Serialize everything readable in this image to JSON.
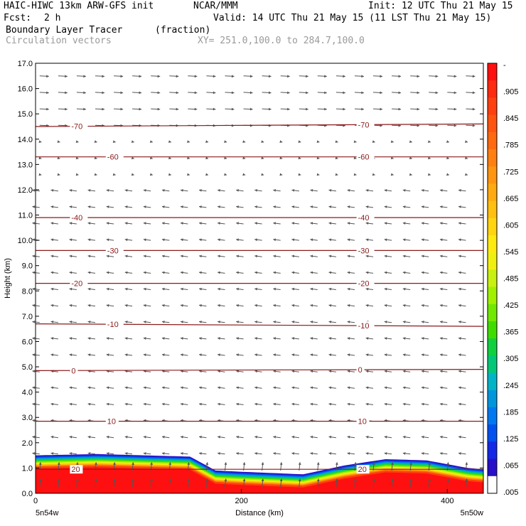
{
  "header": {
    "title": "HAIC-HIWC 13km ARW-GFS init",
    "agency": "NCAR/MMM",
    "init": "Init: 12 UTC Thu 21 May 15",
    "fcst_label": "Fcst:",
    "fcst_value": "2 h",
    "valid": "Valid: 14 UTC Thu 21 May 15 (11 LST Thu 21 May 15)",
    "field_name": "Boundary Layer Tracer",
    "field_units": "(fraction)",
    "vector_name": "Circulation vectors",
    "xy_range": "XY= 251.0,100.0 to 284.7,100.0"
  },
  "chart_data": {
    "type": "heatmap",
    "xlabel": "Distance (km)",
    "ylabel": "Height (km)",
    "xlim": [
      0,
      435
    ],
    "ylim": [
      0,
      17
    ],
    "x_ticks": [
      "0",
      "200",
      "400"
    ],
    "x_tick_values": [
      0,
      200,
      400
    ],
    "y_ticks": [
      "0.0",
      "1.0",
      "2.0",
      "3.0",
      "4.0",
      "5.0",
      "6.0",
      "7.0",
      "8.0",
      "9.0",
      "10.0",
      "11.0",
      "12.0",
      "13.0",
      "14.0",
      "15.0",
      "16.0",
      "17.0"
    ],
    "x_endpoints": [
      "5n54w",
      "5n50w"
    ],
    "colorbar": {
      "labels": [
        "-",
        ".905",
        ".845",
        ".785",
        ".725",
        ".665",
        ".605",
        ".545",
        ".485",
        ".425",
        ".365",
        ".305",
        ".245",
        ".185",
        ".125",
        ".065",
        ".005"
      ],
      "colors": [
        "#ff1010",
        "#ff2a10",
        "#ff4010",
        "#ff5510",
        "#ff6a10",
        "#ff8010",
        "#ff9510",
        "#ffaa10",
        "#ffc010",
        "#ffd510",
        "#ffea10",
        "#f0f010",
        "#c8f010",
        "#a0f000",
        "#70e800",
        "#40dc00",
        "#10d040",
        "#00c878",
        "#00b4c8",
        "#0096dc",
        "#0078f0",
        "#0050f0",
        "#1428e6",
        "#2810c8",
        "#ffffff"
      ]
    },
    "temperature_contours": [
      {
        "label": "-70",
        "z": [
          14.5,
          14.6
        ]
      },
      {
        "label": "-60",
        "z": [
          13.3,
          13.3
        ]
      },
      {
        "label": "-40",
        "z": [
          10.9,
          10.9
        ]
      },
      {
        "label": "-30",
        "z": [
          9.6,
          9.6
        ]
      },
      {
        "label": "-20",
        "z": [
          8.3,
          8.3
        ]
      },
      {
        "label": "-10",
        "z": [
          6.7,
          6.6
        ]
      },
      {
        "label": "0",
        "z": [
          4.85,
          4.9
        ]
      },
      {
        "label": "10",
        "z": [
          2.85,
          2.85
        ]
      },
      {
        "label": "20",
        "z": [
          0.95,
          0.95
        ]
      }
    ],
    "tracer_top": {
      "x": [
        0,
        60,
        150,
        175,
        200,
        260,
        300,
        340,
        380,
        420,
        435
      ],
      "z": [
        1.5,
        1.55,
        1.45,
        0.9,
        0.85,
        0.75,
        1.1,
        1.35,
        1.3,
        1.0,
        0.95
      ]
    },
    "wind_regimes": [
      {
        "zmin": 14.0,
        "zmax": 17.0,
        "u": 1.0,
        "w": -0.05
      },
      {
        "zmin": 12.5,
        "zmax": 14.0,
        "u": 0.2,
        "w": -0.05
      },
      {
        "zmin": 1.5,
        "zmax": 12.5,
        "u": -0.8,
        "w": 0.1
      },
      {
        "zmin": 0.0,
        "zmax": 1.5,
        "u": 0.1,
        "w": 0.9
      }
    ]
  }
}
